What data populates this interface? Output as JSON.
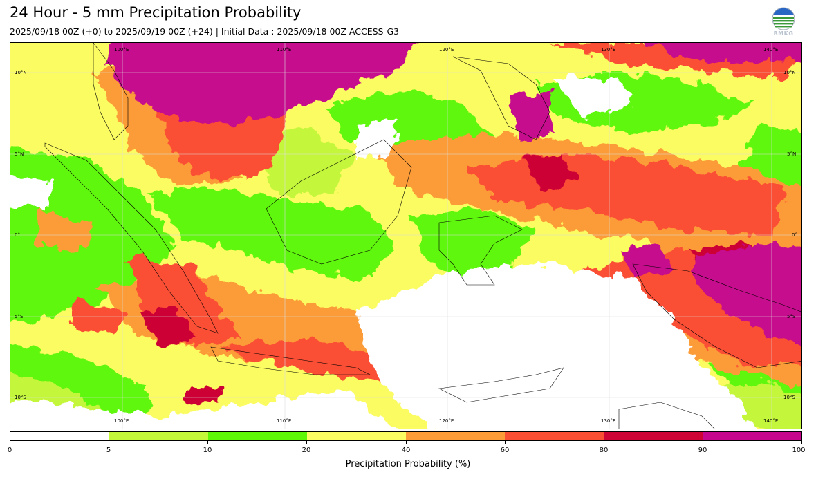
{
  "title": "24 Hour - 5 mm Precipitation Probability",
  "subtitle": "2025/09/18 00Z (+0) to 2025/09/19 00Z (+24) | Initial Data : 2025/09/18 00Z ACCESS-G3",
  "logo_text": "BMKG",
  "map": {
    "longitude_labels": [
      "100°E",
      "110°E",
      "120°E",
      "130°E",
      "140°E"
    ],
    "latitude_labels": [
      "10°N",
      "5°N",
      "0°",
      "5°S",
      "10°S"
    ]
  },
  "colorbar": {
    "title": "Precipitation Probability (%)",
    "ticks": [
      "0",
      "5",
      "10",
      "20",
      "40",
      "60",
      "80",
      "90",
      "100"
    ],
    "colors": [
      "#ffffff",
      "#c4f73a",
      "#5ef708",
      "#fbfb62",
      "#fc9c38",
      "#fb4f34",
      "#cd0435",
      "#c6078d"
    ]
  }
}
